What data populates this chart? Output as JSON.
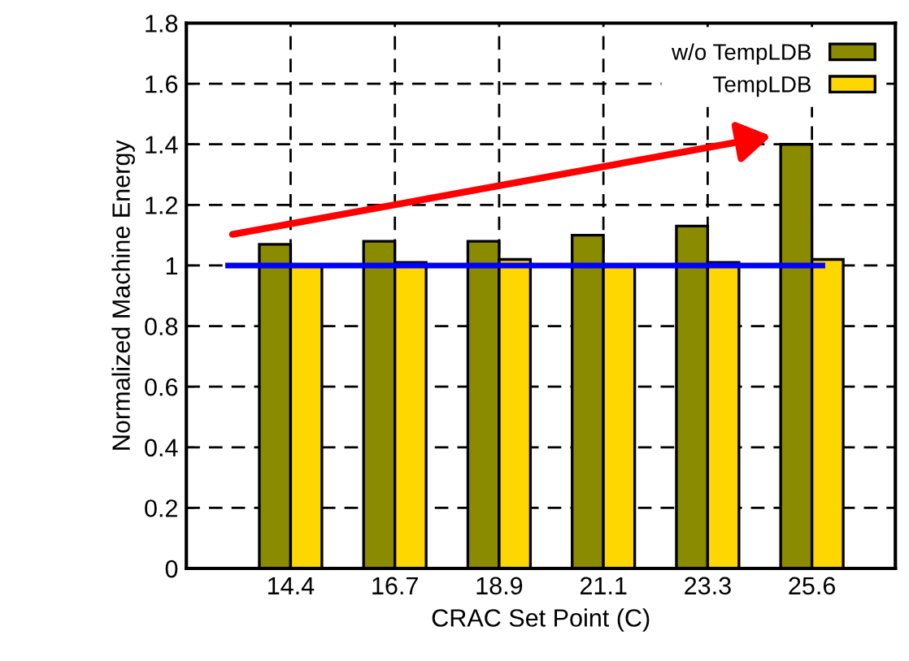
{
  "chart_data": {
    "type": "bar",
    "xlabel": "CRAC Set Point (C)",
    "ylabel": "Normalized Machine Energy",
    "categories": [
      "14.4",
      "16.7",
      "18.9",
      "21.1",
      "23.3",
      "25.6"
    ],
    "series": [
      {
        "name": "w/o TempLDB",
        "color": "#8b8b00",
        "values": [
          1.07,
          1.08,
          1.08,
          1.1,
          1.13,
          1.4
        ]
      },
      {
        "name": "TempLDB",
        "color": "#ffd700",
        "values": [
          1.0,
          1.01,
          1.02,
          1.0,
          1.01,
          1.02
        ]
      }
    ],
    "ylim": [
      0,
      1.8
    ],
    "yticks": [
      0,
      0.2,
      0.4,
      0.6,
      0.8,
      1,
      1.2,
      1.4,
      1.6,
      1.8
    ],
    "ref_lines": [
      {
        "axis": "y",
        "value": 1,
        "color": "#0000ff"
      }
    ],
    "grid": true,
    "legend": "top right"
  }
}
